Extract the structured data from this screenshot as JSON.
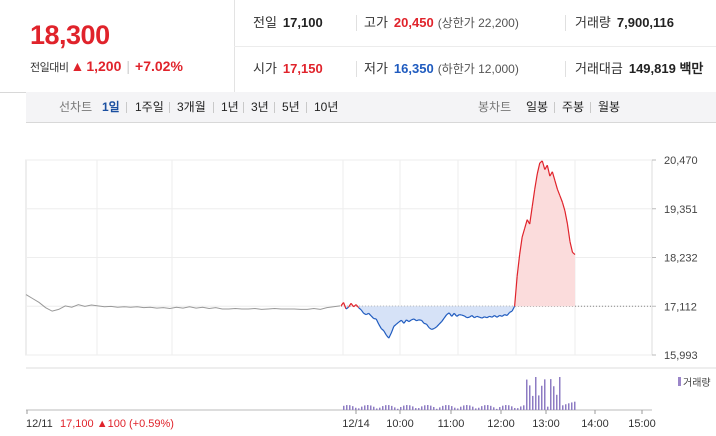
{
  "quote": {
    "price": "18,300",
    "change_label": "전일대비",
    "change_arrow": "▲",
    "change_amount": "1,200",
    "change_pct": "+7.02%",
    "prev_close": {
      "label": "전일",
      "value": "17,100"
    },
    "high": {
      "label": "고가",
      "value": "20,450",
      "limit": "(상한가 22,200)"
    },
    "volume": {
      "label": "거래량",
      "value": "7,900,116"
    },
    "open": {
      "label": "시가",
      "value": "17,150"
    },
    "low": {
      "label": "저가",
      "value": "16,350",
      "limit": "(하한가 12,000)"
    },
    "trade_value": {
      "label": "거래대금",
      "value": "149,819 백만"
    }
  },
  "line_chart_tabs": {
    "label": "선차트",
    "items": [
      {
        "label": "1일",
        "active": true
      },
      {
        "label": "1주일",
        "active": false
      },
      {
        "label": "3개월",
        "active": false
      },
      {
        "label": "1년",
        "active": false
      },
      {
        "label": "3년",
        "active": false
      },
      {
        "label": "5년",
        "active": false
      },
      {
        "label": "10년",
        "active": false
      }
    ]
  },
  "candle_chart_tabs": {
    "label": "봉차트",
    "items": [
      {
        "label": "일봉"
      },
      {
        "label": "주봉"
      },
      {
        "label": "월봉"
      }
    ]
  },
  "colors": {
    "up": "#e0232b",
    "down": "#1f5bbf",
    "prev_line": "#999999"
  },
  "chart_data": {
    "type": "line",
    "y_ticks": [
      "20,470",
      "19,351",
      "18,232",
      "17,112",
      "15,993"
    ],
    "ylim": [
      15993,
      20470
    ],
    "baseline": 17112,
    "volume_label": "거래량",
    "x_labels": [
      "12/11",
      "12/14",
      "10:00",
      "11:00",
      "12:00",
      "13:00",
      "14:00",
      "15:00"
    ],
    "prev_day_summary": {
      "date": "12/11",
      "close": "17,100",
      "arrow": "▲",
      "change": "100",
      "pct": "(+0.59%)"
    },
    "series": [
      {
        "values": [
          17380,
          17290,
          17200,
          17080,
          17000,
          17040,
          17120,
          17090,
          17150,
          17110,
          17140,
          17120,
          17100,
          17110,
          17090,
          17100,
          17090,
          17100,
          17080,
          17090,
          17070,
          17080,
          17060,
          17090,
          17070,
          17100,
          17070,
          17090,
          17060,
          17080,
          17050,
          17050,
          17060,
          17050,
          17050,
          17060,
          17040,
          17050,
          17060,
          17050,
          17050,
          17050,
          17040,
          17040,
          17060,
          17040,
          17080,
          17100,
          17120
        ]
      },
      {
        "values": [
          17120,
          17200,
          17050,
          17090,
          17180,
          17100,
          17150,
          17080,
          17030,
          16950,
          16920,
          16950,
          16890,
          16830,
          16820,
          16700,
          16600,
          16550,
          16450,
          16380,
          16500,
          16650,
          16700,
          16750,
          16790,
          16720,
          16800,
          16760,
          16800,
          16820,
          16780,
          16800,
          16790,
          16720,
          16700,
          16620,
          16580,
          16600,
          16640,
          16700,
          16760,
          16840,
          16920,
          16960,
          16880,
          16950,
          16880,
          16920,
          16910,
          16890,
          16850,
          16860,
          16900,
          16850,
          16880,
          16860,
          16840,
          16870,
          16850,
          16880,
          16860,
          16900,
          16860,
          16900,
          16880,
          16920,
          16900,
          16970,
          17000,
          17112,
          17800,
          18300,
          18700,
          18900,
          19100,
          19000,
          19400,
          19800,
          20150,
          20400,
          20450,
          20250,
          20350,
          20100,
          20200,
          20000,
          19800,
          19650,
          19500,
          19300,
          19000,
          18600,
          18350,
          18300
        ]
      }
    ]
  }
}
